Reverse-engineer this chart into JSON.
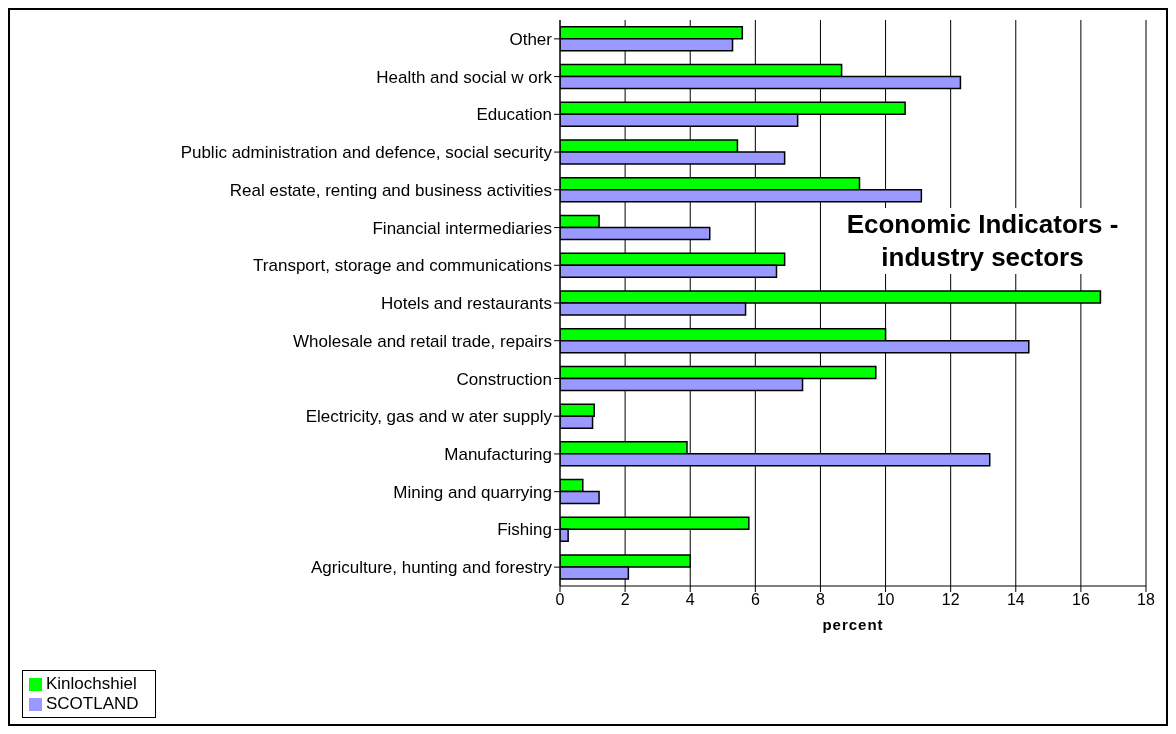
{
  "chart_data": {
    "type": "bar",
    "orientation": "horizontal",
    "title": "Economic Indicators - industry sectors",
    "xlabel": "percent",
    "categories": [
      "Other",
      "Health and social w ork",
      "Education",
      "Public administration and defence, social security",
      "Real estate, renting and business activities",
      "Financial intermediaries",
      "Transport, storage and communications",
      "Hotels and restaurants",
      "Wholesale and retail trade, repairs",
      "Construction",
      "Electricity, gas and w ater supply",
      "Manufacturing",
      "Mining and quarrying",
      "Fishing",
      "Agriculture, hunting and forestry"
    ],
    "series": [
      {
        "name": "Kinlochshiel",
        "color": "#00ff00",
        "values": [
          5.6,
          8.65,
          10.6,
          5.45,
          9.2,
          1.2,
          6.9,
          16.6,
          10.0,
          9.7,
          1.05,
          3.9,
          0.7,
          5.8,
          4.0
        ]
      },
      {
        "name": "SCOTLAND",
        "color": "#9999ff",
        "values": [
          5.3,
          12.3,
          7.3,
          6.9,
          11.1,
          4.6,
          6.65,
          5.7,
          14.4,
          7.45,
          1.0,
          13.2,
          1.2,
          0.25,
          2.1
        ]
      }
    ],
    "xlim": [
      0,
      18
    ],
    "xticks": [
      0,
      2,
      4,
      6,
      8,
      10,
      12,
      14,
      16,
      18
    ],
    "grid": "x",
    "legend": "bottom left"
  }
}
